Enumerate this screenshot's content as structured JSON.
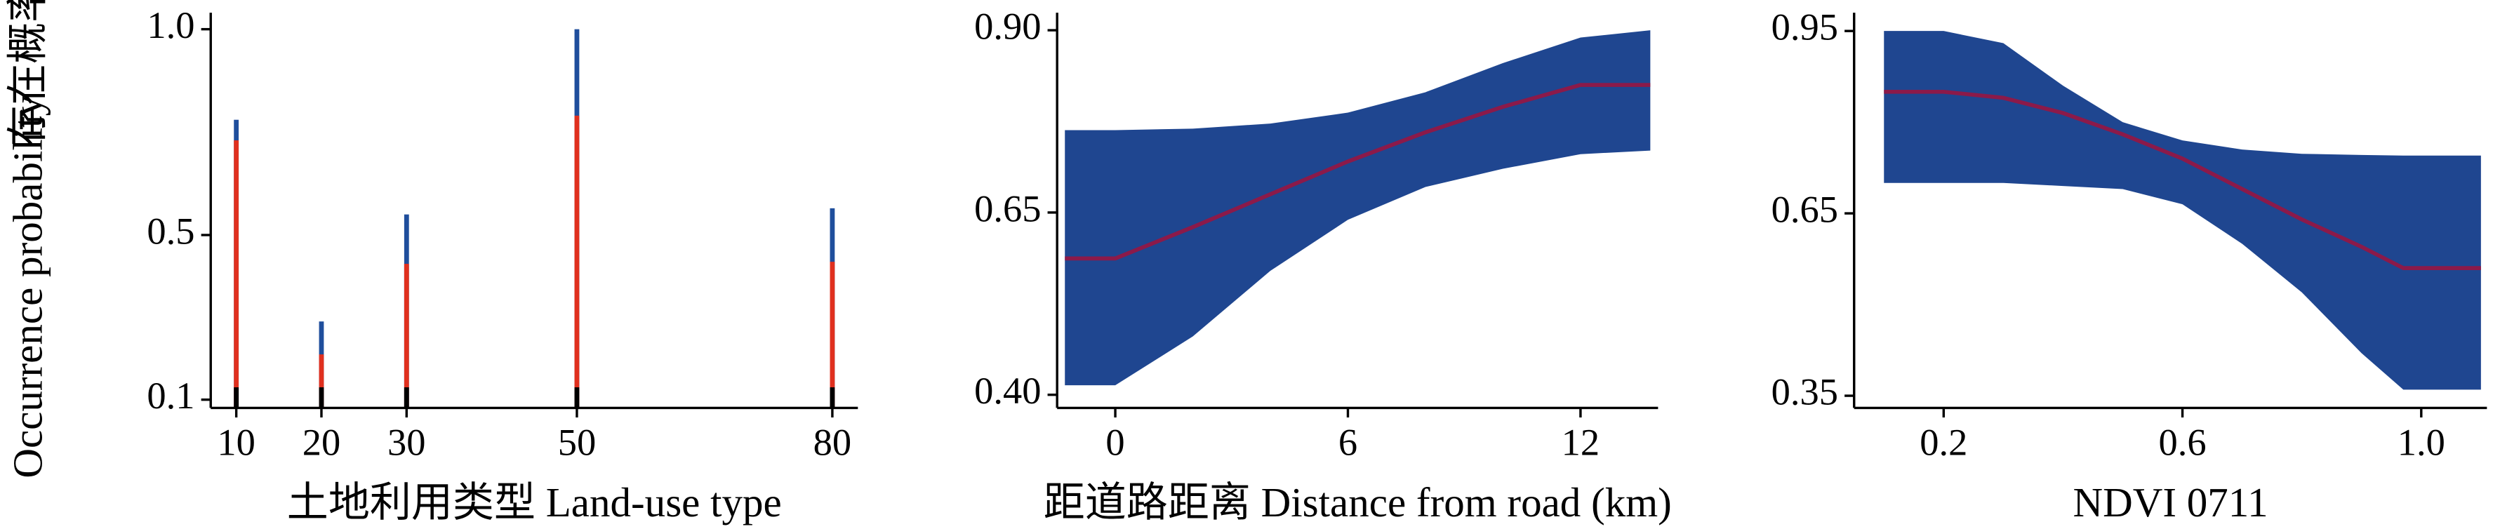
{
  "chart_data": [
    {
      "type": "bar",
      "x": [
        10,
        20,
        30,
        50,
        80
      ],
      "series": [
        {
          "color": "#1f4e9c",
          "values": [
            0.78,
            0.29,
            0.55,
            1.0,
            0.565
          ]
        },
        {
          "color": "#e0301e",
          "values": [
            0.73,
            0.21,
            0.43,
            0.79,
            0.435
          ]
        },
        {
          "color": "#000000",
          "values": [
            0.13,
            0.13,
            0.13,
            0.13,
            0.13
          ]
        }
      ],
      "xlim": [
        7,
        83
      ],
      "xticks": [
        10,
        20,
        30,
        50,
        80
      ],
      "ylim": [
        0.08,
        1.04
      ],
      "yticks": [
        0.1,
        0.5,
        {
          "value": 1,
          "label": "1.0"
        }
      ],
      "xlabel": "土地利用类型 Land-use type",
      "ylabel": [
        "存在概率",
        "Occurrence probability"
      ]
    },
    {
      "type": "band",
      "x": [
        -1.3,
        0,
        2,
        4,
        6,
        8,
        10,
        12,
        13.8
      ],
      "upper": [
        0.763,
        0.763,
        0.765,
        0.772,
        0.787,
        0.815,
        0.855,
        0.89,
        0.9
      ],
      "mean": [
        0.587,
        0.587,
        0.63,
        0.675,
        0.72,
        0.76,
        0.795,
        0.825,
        0.825
      ],
      "lower": [
        0.413,
        0.413,
        0.48,
        0.57,
        0.64,
        0.685,
        0.71,
        0.73,
        0.735
      ],
      "band_color": "#1f4690",
      "line_color": "#8b1a4a",
      "xlim": [
        -1.5,
        14
      ],
      "xticks": [
        0,
        6,
        12
      ],
      "ylim": [
        0.382,
        0.924
      ],
      "yticks": [
        {
          "value": 0.4,
          "label": "0.40"
        },
        0.65,
        {
          "value": 0.9,
          "label": "0.90"
        }
      ],
      "xlabel": "距道路距离 Distance from road (km)"
    },
    {
      "type": "band",
      "x": [
        0.1,
        0.2,
        0.3,
        0.4,
        0.5,
        0.6,
        0.7,
        0.8,
        0.9,
        0.97,
        1.1
      ],
      "upper": [
        0.95,
        0.95,
        0.93,
        0.86,
        0.8,
        0.77,
        0.755,
        0.748,
        0.746,
        0.745,
        0.745
      ],
      "mean": [
        0.85,
        0.85,
        0.84,
        0.815,
        0.78,
        0.74,
        0.69,
        0.64,
        0.595,
        0.56,
        0.56
      ],
      "lower": [
        0.7,
        0.7,
        0.7,
        0.695,
        0.69,
        0.665,
        0.6,
        0.52,
        0.42,
        0.36,
        0.36
      ],
      "band_color": "#1f4690",
      "line_color": "#8b1a4a",
      "xlim": [
        0.05,
        1.11
      ],
      "xticks": [
        0.2,
        0.6,
        {
          "value": 1,
          "label": "1.0"
        }
      ],
      "ylim": [
        0.33,
        0.98
      ],
      "yticks": [
        0.35,
        0.65,
        0.95
      ],
      "xlabel": "NDVI 0711"
    }
  ]
}
